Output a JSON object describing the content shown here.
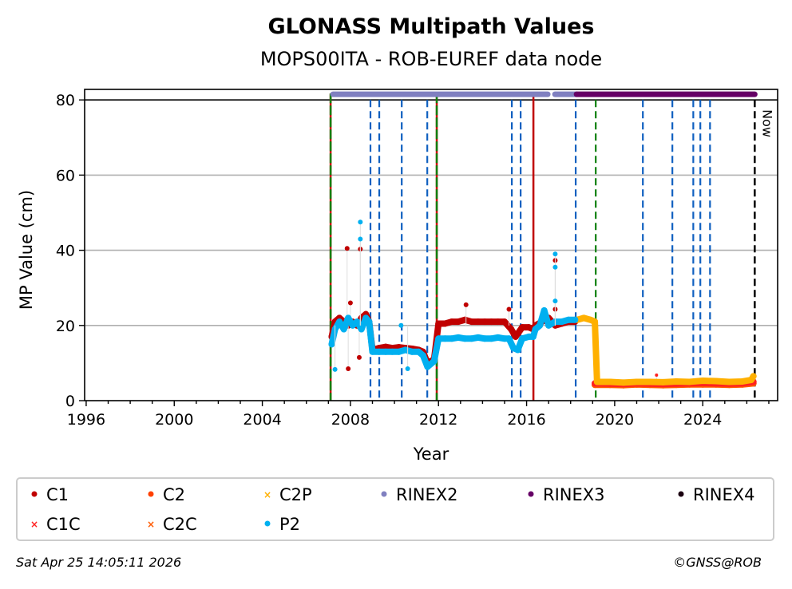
{
  "chart_data": {
    "type": "scatter",
    "title": "GLONASS Multipath Values",
    "subtitle": "MOPS00ITA - ROB-EUREF data node",
    "xlabel": "Year",
    "ylabel": "MP Value (cm)",
    "xlim": [
      1995.93,
      2027.4
    ],
    "ylim": [
      0,
      82.8
    ],
    "xticks": [
      1996,
      2000,
      2004,
      2008,
      2012,
      2016,
      2020,
      2024
    ],
    "yticks": [
      0,
      20,
      40,
      60,
      80
    ],
    "grid": "horizontal",
    "legend_placement": "bottom",
    "now_label": "Now",
    "now_year": 2026.36,
    "series": [
      {
        "name": "C1",
        "color": "#c00000",
        "marker": "circle",
        "x": [
          2007.15,
          2007.3,
          2007.5,
          2007.7,
          2007.9,
          2008.1,
          2008.3,
          2008.5,
          2008.7,
          2008.85,
          2009.0,
          2009.3,
          2009.6,
          2009.9,
          2010.2,
          2010.5,
          2010.8,
          2011.1,
          2011.3,
          2011.5,
          2011.8,
          2012.0,
          2012.3,
          2012.6,
          2012.9,
          2013.2,
          2013.5,
          2013.8,
          2014.1,
          2014.4,
          2014.7,
          2015.0,
          2015.3,
          2015.5,
          2015.8,
          2016.1,
          2016.3,
          2016.4,
          2016.7,
          2017.0,
          2017.3,
          2017.6,
          2017.9,
          2018.2
        ],
        "y": [
          17,
          21,
          22,
          21,
          20,
          21,
          20,
          22,
          23,
          21,
          13.5,
          14,
          14.3,
          14,
          14.2,
          14,
          13.8,
          13.5,
          13,
          10,
          11,
          20.5,
          20.5,
          21,
          21,
          21.5,
          21,
          21,
          21,
          21,
          21,
          21,
          19,
          17,
          19.5,
          19.5,
          19,
          20,
          21,
          22,
          20,
          20.5,
          21,
          21
        ],
        "outliers_x": [
          2007.85,
          2008.45,
          2008.4,
          2007.9,
          2013.25,
          2015.2,
          2017.3,
          2017.3,
          2008.0
        ],
        "outliers_y": [
          40.5,
          40.3,
          11.5,
          8.5,
          25.5,
          24.3,
          37.3,
          24.3,
          26
        ]
      },
      {
        "name": "C2",
        "color": "#ff4000",
        "marker": "circle",
        "x": [],
        "y": []
      },
      {
        "name": "C2P",
        "color": "#ffb000",
        "marker": "x",
        "x": [
          2018.3,
          2018.6,
          2018.9,
          2019.1,
          2019.2,
          2019.8,
          2020.4,
          2021.0,
          2021.6,
          2022.2,
          2022.8,
          2023.4,
          2024.0,
          2024.6,
          2025.2,
          2025.8,
          2026.2,
          2026.3
        ],
        "y": [
          21.5,
          22,
          21.5,
          21,
          5,
          5,
          4.8,
          5,
          5,
          4.9,
          5.1,
          5,
          5.3,
          5.2,
          5,
          5.1,
          5.5,
          6.5
        ],
        "outliers_x": [],
        "outliers_y": []
      },
      {
        "name": "RINEX2",
        "color": "#8080c0",
        "marker": "circle",
        "x": [],
        "y": []
      },
      {
        "name": "RINEX3",
        "color": "#660066",
        "marker": "circle",
        "x": [],
        "y": []
      },
      {
        "name": "RINEX4",
        "color": "#1a0010",
        "marker": "circle",
        "x": [],
        "y": []
      },
      {
        "name": "C1C",
        "color": "#ff2020",
        "marker": "x",
        "x": [
          2019.1,
          2019.8,
          2020.4,
          2021.0,
          2021.6,
          2022.2,
          2022.8,
          2023.4,
          2024.0,
          2024.6,
          2025.2,
          2025.8,
          2026.3
        ],
        "y": [
          4.6,
          4.5,
          4.4,
          4.6,
          4.5,
          4.4,
          4.5,
          4.6,
          4.7,
          4.6,
          4.5,
          4.6,
          5
        ],
        "outliers_x": [
          2021.9
        ],
        "outliers_y": [
          6.8
        ]
      },
      {
        "name": "C2C",
        "color": "#ff5a00",
        "marker": "x",
        "x": [
          2019.1,
          2019.8,
          2020.4,
          2021.0,
          2021.6,
          2022.2,
          2022.8,
          2023.4,
          2024.0,
          2024.6,
          2025.2,
          2025.8,
          2026.3
        ],
        "y": [
          4.2,
          4.2,
          4.1,
          4.3,
          4.2,
          4.1,
          4.2,
          4.3,
          4.3,
          4.3,
          4.2,
          4.3,
          4.6
        ],
        "outliers_x": [],
        "outliers_y": []
      },
      {
        "name": "P2",
        "color": "#00b0f0",
        "marker": "circle",
        "x": [
          2007.15,
          2007.3,
          2007.5,
          2007.7,
          2007.9,
          2008.1,
          2008.3,
          2008.5,
          2008.7,
          2008.85,
          2009.0,
          2009.3,
          2009.6,
          2009.9,
          2010.2,
          2010.5,
          2010.8,
          2011.1,
          2011.3,
          2011.5,
          2011.8,
          2012.0,
          2012.3,
          2012.6,
          2012.9,
          2013.2,
          2013.5,
          2013.8,
          2014.1,
          2014.4,
          2014.7,
          2015.0,
          2015.2,
          2015.4,
          2015.6,
          2015.8,
          2016.1,
          2016.3,
          2016.4,
          2016.6,
          2016.8,
          2017.0,
          2017.3,
          2017.6,
          2017.9,
          2018.2
        ],
        "y": [
          15,
          19,
          21,
          19,
          22,
          20,
          21,
          19,
          22,
          21,
          13,
          13,
          13,
          13,
          13,
          13.5,
          13,
          13,
          12,
          9,
          10.5,
          16.5,
          16.5,
          16.5,
          16.8,
          16.5,
          16.5,
          16.8,
          16.5,
          16.5,
          16.8,
          16.5,
          16.5,
          14,
          13.5,
          16.5,
          17,
          17,
          19,
          20,
          24,
          20,
          21,
          21,
          21.5,
          21.5
        ],
        "outliers_x": [
          2008.45,
          2008.45,
          2007.3,
          2017.3,
          2017.3,
          2017.3,
          2010.3,
          2010.6
        ],
        "outliers_y": [
          47.5,
          43,
          8.3,
          39,
          35.5,
          26.5,
          20,
          8.5
        ]
      }
    ],
    "rinex_bars": [
      {
        "name": "RINEX2",
        "start": 2007.21,
        "end": 2016.96
      },
      {
        "name": "RINEX2",
        "start": 2017.29,
        "end": 2018.27
      },
      {
        "name": "RINEX3",
        "start": 2018.27,
        "end": 2026.36
      }
    ],
    "event_lines": [
      {
        "year": 2007.1,
        "kind": "red-green"
      },
      {
        "year": 2008.91,
        "kind": "blue"
      },
      {
        "year": 2009.31,
        "kind": "blue"
      },
      {
        "year": 2010.33,
        "kind": "blue"
      },
      {
        "year": 2011.49,
        "kind": "blue"
      },
      {
        "year": 2011.92,
        "kind": "red-green"
      },
      {
        "year": 2015.33,
        "kind": "blue"
      },
      {
        "year": 2015.73,
        "kind": "blue"
      },
      {
        "year": 2016.31,
        "kind": "red"
      },
      {
        "year": 2018.23,
        "kind": "blue"
      },
      {
        "year": 2019.14,
        "kind": "green"
      },
      {
        "year": 2021.28,
        "kind": "blue"
      },
      {
        "year": 2022.62,
        "kind": "blue"
      },
      {
        "year": 2023.57,
        "kind": "blue"
      },
      {
        "year": 2023.89,
        "kind": "blue"
      },
      {
        "year": 2024.33,
        "kind": "blue"
      },
      {
        "year": 2026.36,
        "kind": "now"
      }
    ]
  },
  "footer": {
    "timestamp": "Sat Apr 25 14:05:11 2026",
    "copyright": "©GNSS@ROB"
  }
}
